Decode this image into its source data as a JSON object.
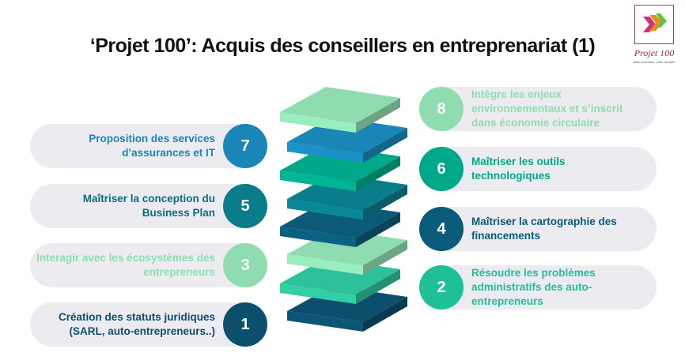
{
  "title": "‘Projet 100’: Acquis des conseillers en entreprenariat (1)",
  "logo": {
    "name": "Projet 100",
    "tagline": "Bâtir ensemble, créer durable"
  },
  "items": [
    {
      "number": "1",
      "text": "Création des statuts juridiques (SARL, auto-entrepreneurs..)",
      "side": "left",
      "color": "#0b4f6c",
      "text_color": "#0b4f6c"
    },
    {
      "number": "2",
      "text": "Résoudre les problèmes administratifs des auto-entrepreneurs",
      "side": "right",
      "color": "#1fbf9a",
      "text_color": "#1fbf9a"
    },
    {
      "number": "3",
      "text": "Interagir avec les écosystèmes des entrepreneurs",
      "side": "left",
      "color": "#8fdcb0",
      "text_color": "#8fdcb0"
    },
    {
      "number": "4",
      "text": "Maîtriser la cartographie des financements",
      "side": "right",
      "color": "#0a5a7a",
      "text_color": "#0a5a7a"
    },
    {
      "number": "5",
      "text": "Maîtriser la conception du Business Plan",
      "side": "left",
      "color": "#0a7d8a",
      "text_color": "#0a6e80"
    },
    {
      "number": "6",
      "text": "Maîtriser les outils technologiques",
      "side": "right",
      "color": "#00a88a",
      "text_color": "#00a88a"
    },
    {
      "number": "7",
      "text": "Proposition des services d’assurances et IT",
      "side": "left",
      "color": "#1a86b8",
      "text_color": "#1a86b8"
    },
    {
      "number": "8",
      "text": "Intègre les  enjeux environnementaux et s’inscrit dans économie circulaire",
      "side": "right",
      "color": "#8fdcb0",
      "text_color": "#8fdcb0"
    }
  ],
  "stack_colors": [
    "#8fdcb0",
    "#1a86b8",
    "#00a88a",
    "#0a7d8a",
    "#0a5a78",
    "#8fdcb0",
    "#2ec09a",
    "#0b4f6c"
  ]
}
